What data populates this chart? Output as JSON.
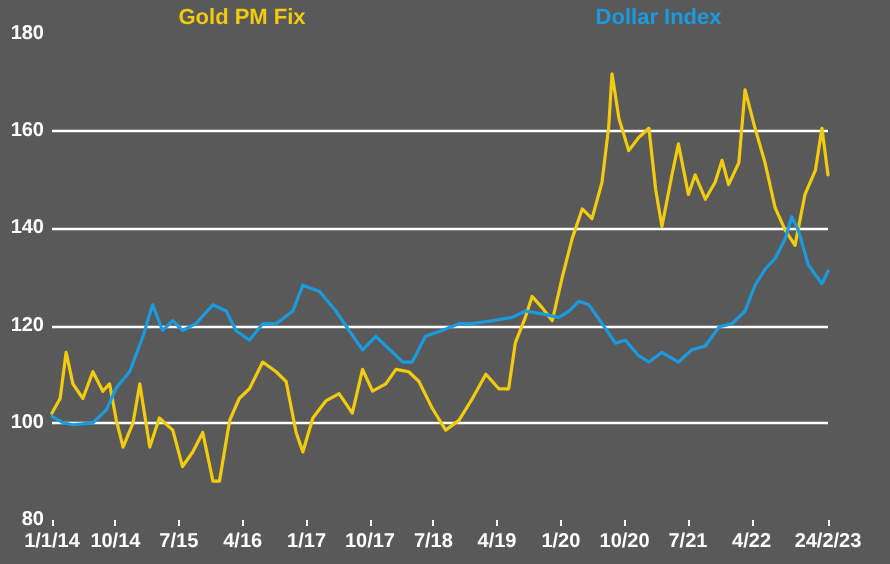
{
  "chart_data": {
    "type": "line",
    "legend": "top",
    "grid": "y",
    "marker": "none",
    "line_style": "solid",
    "xlim": [
      "2014-01-01",
      "2023-02-24"
    ],
    "xticks": [
      {
        "value": "2014-01-01",
        "label": "1/1/14"
      },
      {
        "value": "2014-10-01",
        "label": "10/14"
      },
      {
        "value": "2015-07-01",
        "label": "7/15"
      },
      {
        "value": "2016-04-01",
        "label": "4/16"
      },
      {
        "value": "2017-01-01",
        "label": "1/17"
      },
      {
        "value": "2017-10-01",
        "label": "10/17"
      },
      {
        "value": "2018-07-01",
        "label": "7/18"
      },
      {
        "value": "2019-04-01",
        "label": "4/19"
      },
      {
        "value": "2020-01-01",
        "label": "1/20"
      },
      {
        "value": "2020-10-01",
        "label": "10/20"
      },
      {
        "value": "2021-07-01",
        "label": "7/21"
      },
      {
        "value": "2022-04-01",
        "label": "4/22"
      },
      {
        "value": "2023-02-24",
        "label": "24/2/23"
      }
    ],
    "ylim": [
      80,
      180
    ],
    "yticks": [
      80,
      100,
      120,
      140,
      160,
      180
    ],
    "series": [
      {
        "name": "Gold PM Fix",
        "color": "#f2cc0c",
        "x": [
          "2014-01-01",
          "2014-02-05",
          "2014-03-03",
          "2014-04-01",
          "2014-05-14",
          "2014-06-26",
          "2014-08-08",
          "2014-09-06",
          "2014-10-05",
          "2014-11-03",
          "2014-12-16",
          "2015-01-14",
          "2015-02-26",
          "2015-04-08",
          "2015-06-05",
          "2015-07-17",
          "2015-08-30",
          "2015-10-12",
          "2015-11-25",
          "2015-12-23",
          "2016-02-05",
          "2016-03-17",
          "2016-04-30",
          "2016-06-26",
          "2016-08-23",
          "2016-10-05",
          "2016-11-17",
          "2016-12-16",
          "2017-01-28",
          "2017-03-25",
          "2017-05-21",
          "2017-07-17",
          "2017-08-30",
          "2017-10-12",
          "2017-12-08",
          "2018-01-21",
          "2018-03-17",
          "2018-04-30",
          "2018-06-26",
          "2018-08-23",
          "2018-10-19",
          "2018-12-16",
          "2019-02-12",
          "2019-04-09",
          "2019-05-21",
          "2019-06-19",
          "2019-08-01",
          "2019-08-30",
          "2019-10-12",
          "2019-11-25",
          "2020-01-07",
          "2020-02-19",
          "2020-04-02",
          "2020-05-14",
          "2020-06-26",
          "2020-07-25",
          "2020-08-08",
          "2020-09-07",
          "2020-10-19",
          "2020-12-01",
          "2021-01-14",
          "2021-02-12",
          "2021-03-11",
          "2021-04-23",
          "2021-05-21",
          "2021-07-03",
          "2021-08-01",
          "2021-09-14",
          "2021-10-26",
          "2021-11-25",
          "2021-12-23",
          "2022-02-05",
          "2022-03-04",
          "2022-04-16",
          "2022-05-29",
          "2022-07-11",
          "2022-08-23",
          "2022-10-05",
          "2022-11-17",
          "2023-01-01",
          "2023-01-29",
          "2023-02-24"
        ],
        "values": [
          102,
          105,
          114.5,
          108,
          105,
          110.5,
          106.5,
          108,
          100.5,
          95,
          100,
          108,
          95,
          101,
          98.5,
          91,
          94,
          98,
          88,
          88,
          100.5,
          105,
          107,
          112.5,
          110.5,
          108.5,
          98,
          94,
          101,
          104.5,
          106,
          102,
          111,
          106.5,
          108,
          111,
          110.5,
          108.5,
          103,
          98.5,
          100.5,
          105,
          110,
          107,
          107,
          116.5,
          121.7,
          126,
          123.7,
          121,
          130,
          138,
          144,
          142,
          149.5,
          161,
          171.8,
          162.6,
          156,
          158.7,
          160.6,
          148,
          140.4,
          151,
          157.4,
          147,
          151,
          146,
          149.5,
          154,
          149,
          153.5,
          168.5,
          160.6,
          153.5,
          144.3,
          139.7,
          136.5,
          147,
          152,
          160.6,
          151
        ]
      },
      {
        "name": "Dollar Index",
        "color": "#1a9be0",
        "x": [
          "2014-01-01",
          "2014-02-18",
          "2014-04-01",
          "2014-06-26",
          "2014-08-22",
          "2014-10-05",
          "2014-12-01",
          "2015-01-28",
          "2015-03-10",
          "2015-04-22",
          "2015-06-05",
          "2015-07-17",
          "2015-09-13",
          "2015-11-25",
          "2016-01-21",
          "2016-03-03",
          "2016-04-30",
          "2016-06-26",
          "2016-08-23",
          "2016-11-03",
          "2016-12-16",
          "2017-02-26",
          "2017-05-07",
          "2017-07-03",
          "2017-08-30",
          "2017-10-26",
          "2018-01-07",
          "2018-02-19",
          "2018-04-01",
          "2018-05-28",
          "2018-08-08",
          "2018-10-19",
          "2018-12-16",
          "2019-03-11",
          "2019-06-05",
          "2019-08-01",
          "2019-10-12",
          "2019-12-23",
          "2020-02-05",
          "2020-03-18",
          "2020-04-30",
          "2020-06-26",
          "2020-08-23",
          "2020-10-05",
          "2020-12-01",
          "2021-01-14",
          "2021-03-11",
          "2021-05-21",
          "2021-07-17",
          "2021-09-14",
          "2021-11-11",
          "2022-01-07",
          "2022-03-04",
          "2022-04-16",
          "2022-05-29",
          "2022-07-11",
          "2022-08-23",
          "2022-09-21",
          "2022-10-19",
          "2022-12-01",
          "2023-01-29",
          "2023-02-24"
        ],
        "values": [
          101.3,
          100,
          99.6,
          100,
          102.6,
          107.2,
          110.5,
          117.8,
          124.3,
          119,
          121,
          119,
          120.4,
          124.3,
          123,
          119,
          117,
          120.4,
          120.4,
          123,
          128.3,
          127,
          123,
          119,
          115,
          117.8,
          114.5,
          112.5,
          112.5,
          117.8,
          119,
          120.4,
          120.4,
          121,
          121.7,
          123,
          122.4,
          121.7,
          123,
          125,
          124.3,
          120.4,
          116.4,
          117,
          113.8,
          112.5,
          114.5,
          112.5,
          115,
          115.8,
          119.7,
          120.4,
          123,
          128.3,
          131.6,
          133.8,
          137.8,
          142.4,
          139.7,
          132.5,
          128.6,
          131.2
        ]
      }
    ]
  }
}
